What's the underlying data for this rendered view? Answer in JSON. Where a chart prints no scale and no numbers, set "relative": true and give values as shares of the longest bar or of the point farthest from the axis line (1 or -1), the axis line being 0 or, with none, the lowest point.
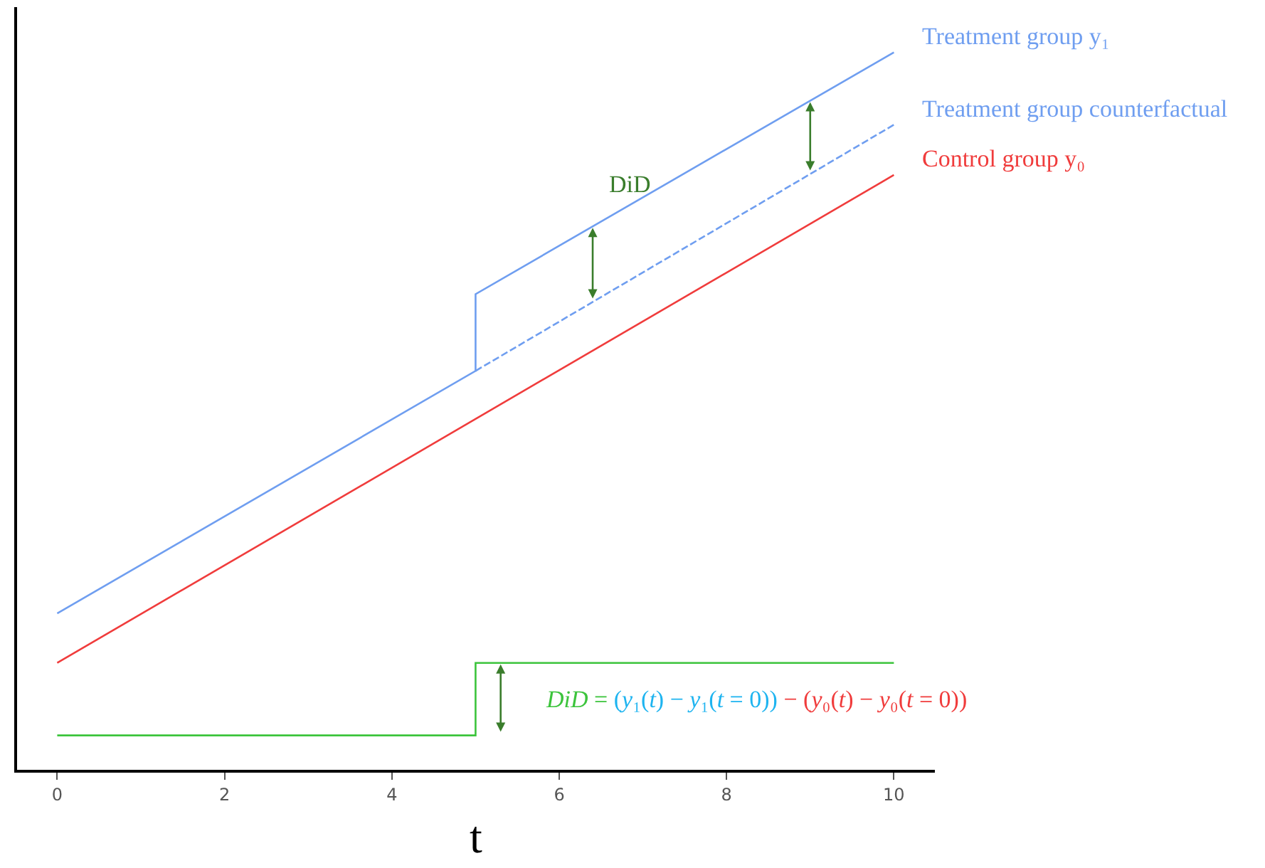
{
  "chart_data": {
    "type": "line",
    "relative": true,
    "xlabel": "t",
    "xlim": [
      -0.48,
      10.49
    ],
    "xticks": [
      0,
      2,
      4,
      6,
      8,
      10
    ],
    "legend": false,
    "marker": "none",
    "series": [
      {
        "name": "Treatment group y₁",
        "color": "#6f9ef0",
        "x": [
          0,
          5,
          5,
          10
        ],
        "values": [
          0.218,
          0.556,
          0.663,
          1.0
        ]
      },
      {
        "name": "Treatment group counterfactual",
        "color": "#6f9ef0",
        "x": [
          5,
          10
        ],
        "values": [
          0.556,
          0.899
        ],
        "line_style": "dashed"
      },
      {
        "name": "Control group y₀",
        "color": "#f03c3c",
        "x": [
          0,
          10
        ],
        "values": [
          0.149,
          0.829
        ]
      },
      {
        "color": "#3cc43c",
        "x": [
          0,
          5,
          5,
          10
        ],
        "values": [
          0.048,
          0.048,
          0.149,
          0.149
        ]
      }
    ],
    "annotations": [
      "DiD",
      "DiD = ",
      "(y₁(t) − y₁(t = 0))",
      " − (y₀(t) − y₀(t = 0))"
    ]
  }
}
